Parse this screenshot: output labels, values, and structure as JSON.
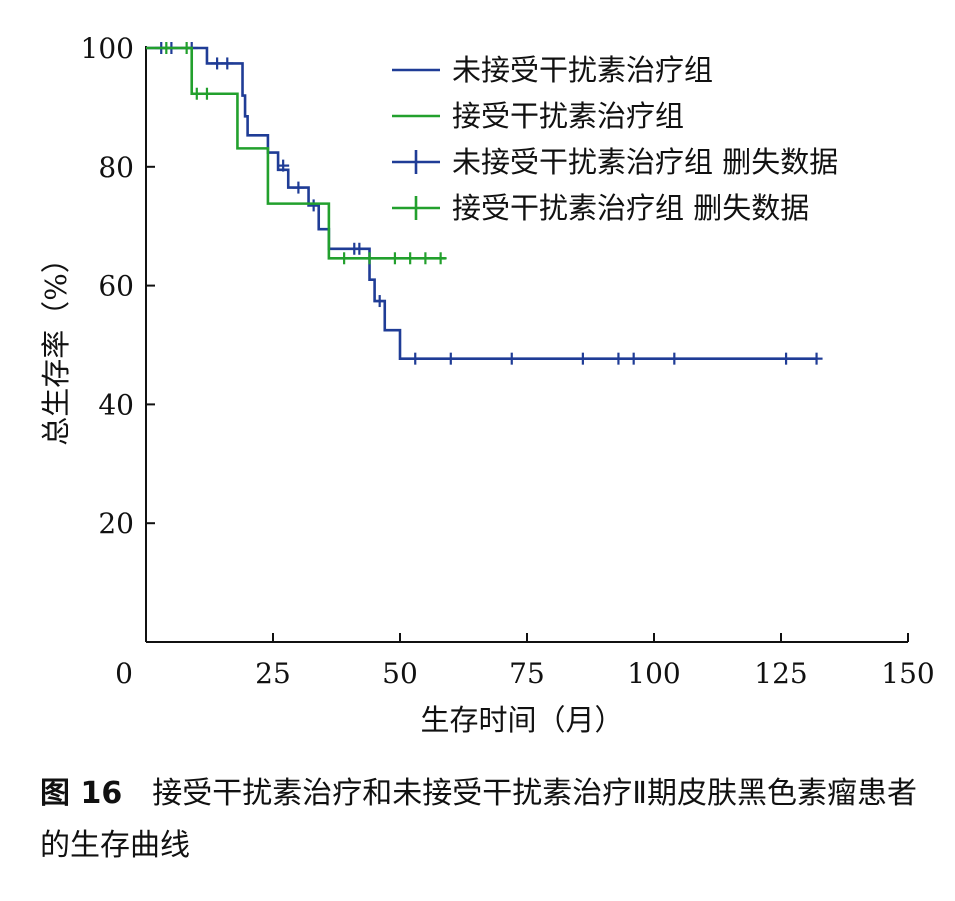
{
  "chart_data": {
    "type": "line",
    "xlabel": "生存时间（月）",
    "ylabel": "总生存率（%）",
    "xlim": [
      0,
      150
    ],
    "ylim": [
      0,
      100
    ],
    "xticks": [
      "0",
      "25",
      "50",
      "75",
      "100",
      "125",
      "150"
    ],
    "yticks": [
      "20",
      "40",
      "60",
      "80",
      "100"
    ],
    "legend_position": "top-right",
    "grid": false,
    "colors": {
      "untreated": "#1f3c96",
      "treated": "#22a02d"
    },
    "legend": [
      {
        "label": "未接受干扰素治疗组",
        "series": "untreated",
        "marker": "line"
      },
      {
        "label": "接受干扰素治疗组",
        "series": "treated",
        "marker": "line"
      },
      {
        "label": "未接受干扰素治疗组 删失数据",
        "series": "untreated",
        "marker": "plus"
      },
      {
        "label": "接受干扰素治疗组 删失数据",
        "series": "treated",
        "marker": "plus"
      }
    ],
    "series": [
      {
        "key": "untreated",
        "name": "未接受干扰素治疗组",
        "steps": [
          [
            0,
            100
          ],
          [
            12,
            97.4
          ],
          [
            19,
            92.0
          ],
          [
            19.5,
            88.5
          ],
          [
            20,
            85.3
          ],
          [
            24,
            82.4
          ],
          [
            26,
            79.5
          ],
          [
            28,
            76.5
          ],
          [
            32,
            73.5
          ],
          [
            34,
            69.5
          ],
          [
            36,
            66.2
          ],
          [
            44,
            61.0
          ],
          [
            45,
            57.4
          ],
          [
            47,
            52.5
          ],
          [
            50,
            47.7
          ],
          [
            132,
            47.7
          ]
        ],
        "censored": [
          [
            3,
            100
          ],
          [
            5,
            100
          ],
          [
            9,
            100
          ],
          [
            14,
            97.4
          ],
          [
            16,
            97.4
          ],
          [
            27,
            80.2
          ],
          [
            30,
            76.5
          ],
          [
            33,
            73.5
          ],
          [
            41,
            66.2
          ],
          [
            42,
            66.2
          ],
          [
            46,
            57.4
          ],
          [
            53,
            47.7
          ],
          [
            60,
            47.7
          ],
          [
            72,
            47.7
          ],
          [
            86,
            47.7
          ],
          [
            93,
            47.7
          ],
          [
            96,
            47.7
          ],
          [
            104,
            47.7
          ],
          [
            126,
            47.7
          ],
          [
            132,
            47.7
          ]
        ]
      },
      {
        "key": "treated",
        "name": "接受干扰素治疗组",
        "steps": [
          [
            0,
            100
          ],
          [
            9,
            92.3
          ],
          [
            18,
            83.1
          ],
          [
            24,
            73.8
          ],
          [
            36,
            64.6
          ],
          [
            59,
            64.6
          ]
        ],
        "censored": [
          [
            4,
            100
          ],
          [
            8,
            100
          ],
          [
            10,
            92.3
          ],
          [
            12,
            92.3
          ],
          [
            39,
            64.6
          ],
          [
            44,
            64.6
          ],
          [
            49,
            64.6
          ],
          [
            52,
            64.6
          ],
          [
            55,
            64.6
          ],
          [
            58,
            64.6
          ]
        ]
      }
    ]
  },
  "caption": {
    "number": "图 16",
    "text": "接受干扰素治疗和未接受干扰素治疗Ⅱ期皮肤黑色素瘤患者的生存曲线"
  }
}
